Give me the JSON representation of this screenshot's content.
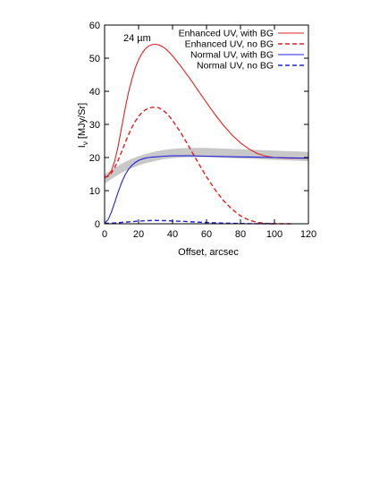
{
  "chart_data": {
    "type": "line",
    "panel_label": "24 µm",
    "xlabel": "Offset, arcsec",
    "ylabel_main": "I",
    "ylabel_sub": "ν",
    "ylabel_rest": " [MJy/Sr]",
    "xlim": [
      0,
      120
    ],
    "ylim": [
      0,
      60
    ],
    "xticks": [
      0,
      20,
      40,
      60,
      80,
      100,
      120
    ],
    "yticks": [
      0,
      10,
      20,
      30,
      40,
      50,
      60
    ],
    "legend_position": "top-right",
    "observed_band": {
      "color": "#c8c8c8",
      "x": [
        0,
        5,
        10,
        15,
        20,
        25,
        30,
        35,
        40,
        45,
        50,
        55,
        60,
        65,
        70,
        75,
        80,
        85,
        90,
        95,
        100,
        105,
        110,
        115,
        120
      ],
      "y": [
        13.5,
        15.2,
        16.8,
        18.0,
        19.0,
        19.8,
        20.4,
        20.9,
        21.2,
        21.4,
        21.5,
        21.5,
        21.5,
        21.4,
        21.3,
        21.2,
        21.1,
        21.0,
        20.9,
        20.8,
        20.7,
        20.6,
        20.5,
        20.4,
        20.3
      ],
      "half_width": 1.4
    },
    "series": [
      {
        "name": "Enhanced UV, with BG",
        "color": "#e02020",
        "dash": "solid",
        "x": [
          0,
          2,
          4,
          6,
          8,
          10,
          12,
          14,
          16,
          18,
          20,
          22,
          24,
          26,
          28,
          30,
          32,
          34,
          36,
          38,
          40,
          45,
          50,
          55,
          60,
          65,
          70,
          75,
          80,
          85,
          90,
          95,
          100,
          105,
          110,
          115,
          120
        ],
        "y": [
          14.0,
          14.5,
          16.0,
          19.0,
          23.5,
          29.0,
          34.5,
          39.5,
          43.5,
          47.0,
          49.5,
          51.5,
          52.8,
          53.7,
          54.1,
          54.2,
          54.0,
          53.5,
          52.8,
          51.8,
          50.7,
          47.5,
          44.0,
          40.3,
          36.6,
          33.0,
          29.7,
          26.8,
          24.4,
          22.6,
          21.2,
          20.4,
          20.0,
          19.9,
          19.8,
          19.8,
          19.8
        ]
      },
      {
        "name": "Enhanced UV, no BG",
        "color": "#e02020",
        "dash": "dashed",
        "x": [
          0,
          2,
          4,
          6,
          8,
          10,
          12,
          14,
          16,
          18,
          20,
          22,
          24,
          26,
          28,
          30,
          32,
          34,
          36,
          38,
          40,
          45,
          50,
          55,
          60,
          65,
          70,
          75,
          80,
          85,
          90,
          95,
          100,
          105,
          110
        ],
        "y": [
          14.0,
          14.3,
          15.3,
          17.0,
          19.2,
          21.7,
          24.3,
          26.8,
          29.0,
          30.9,
          32.4,
          33.6,
          34.4,
          34.9,
          35.1,
          35.2,
          35.0,
          34.4,
          33.6,
          32.5,
          31.2,
          27.4,
          23.0,
          18.5,
          14.2,
          10.3,
          7.0,
          4.4,
          2.4,
          1.1,
          0.4,
          0.1,
          0.0,
          0.0,
          0.0
        ]
      },
      {
        "name": "Normal UV, with BG",
        "color": "#2020e0",
        "dash": "solid",
        "x": [
          0,
          2,
          4,
          6,
          8,
          10,
          12,
          14,
          16,
          18,
          20,
          22,
          24,
          26,
          28,
          30,
          35,
          40,
          45,
          50,
          60,
          70,
          80,
          90,
          100,
          110,
          120
        ],
        "y": [
          0.2,
          1.2,
          3.5,
          6.5,
          9.6,
          12.4,
          14.7,
          16.4,
          17.6,
          18.5,
          19.1,
          19.5,
          19.8,
          20.0,
          20.1,
          20.2,
          20.4,
          20.5,
          20.5,
          20.5,
          20.4,
          20.3,
          20.2,
          20.1,
          20.0,
          19.9,
          19.8
        ]
      },
      {
        "name": "Normal UV, no BG",
        "color": "#2020e0",
        "dash": "dashed",
        "x": [
          0,
          5,
          10,
          15,
          20,
          25,
          30,
          35,
          40,
          45,
          50,
          55,
          60,
          65,
          70,
          75,
          80,
          85,
          90,
          95,
          100
        ],
        "y": [
          0.1,
          0.2,
          0.4,
          0.6,
          0.8,
          0.95,
          1.0,
          0.95,
          0.85,
          0.75,
          0.62,
          0.5,
          0.38,
          0.28,
          0.2,
          0.13,
          0.08,
          0.04,
          0.02,
          0.01,
          0.0
        ]
      }
    ]
  }
}
